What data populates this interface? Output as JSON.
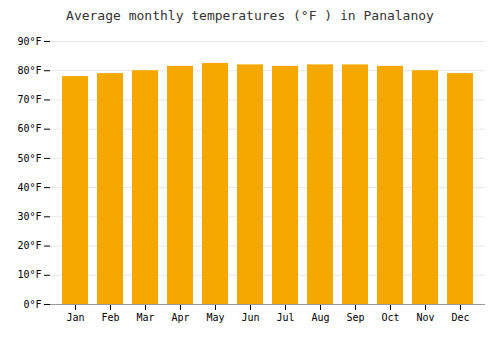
{
  "chart_data": {
    "type": "bar",
    "title": "Average monthly temperatures (°F ) in Panalanoy",
    "categories": [
      "Jan",
      "Feb",
      "Mar",
      "Apr",
      "May",
      "Jun",
      "Jul",
      "Aug",
      "Sep",
      "Oct",
      "Nov",
      "Dec"
    ],
    "values": [
      78,
      79,
      80,
      81.5,
      82.5,
      82,
      81.5,
      82,
      82,
      81.5,
      80,
      79
    ],
    "color": "#F5A800",
    "ylim": [
      0,
      90
    ],
    "yticks": [
      {
        "value": 0,
        "label": "0°F"
      },
      {
        "value": 10,
        "label": "10°F"
      },
      {
        "value": 20,
        "label": "20°F"
      },
      {
        "value": 30,
        "label": "30°F"
      },
      {
        "value": 40,
        "label": "40°F"
      },
      {
        "value": 50,
        "label": "50°F"
      },
      {
        "value": 60,
        "label": "60°F"
      },
      {
        "value": 70,
        "label": "70°F"
      },
      {
        "value": 80,
        "label": "80°F"
      },
      {
        "value": 90,
        "label": "90°F"
      }
    ],
    "grid": true
  }
}
